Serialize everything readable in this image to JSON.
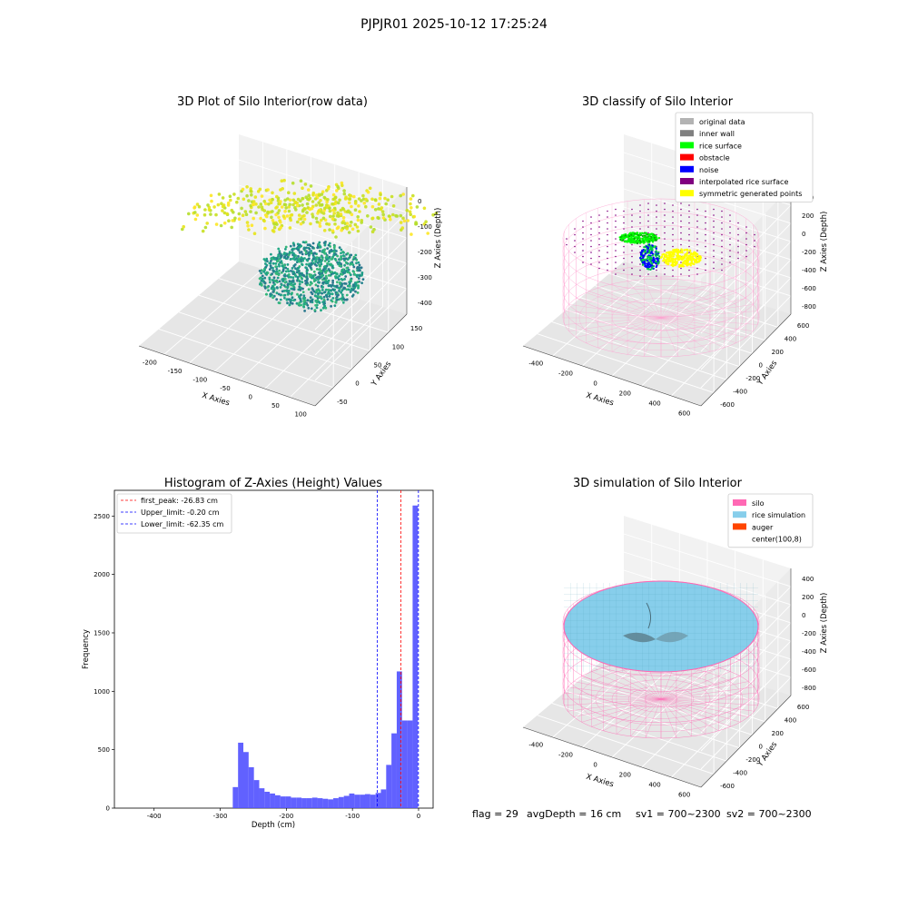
{
  "suptitle": "PJPJR01 2025-10-12 17:25:24",
  "panel1": {
    "title": "3D Plot of Silo Interior(row data)",
    "xlabel": "X Axies",
    "ylabel": "Y Axies",
    "zlabel": "Z Axies (Depth)",
    "xticks": [
      "-200",
      "-150",
      "-100",
      "-50",
      "0",
      "50",
      "100"
    ],
    "yticks": [
      "-50",
      "0",
      "50",
      "100",
      "150"
    ],
    "zticks": [
      "0",
      "-100",
      "-200",
      "-300",
      "-400"
    ]
  },
  "panel2": {
    "title": "3D classify of Silo Interior",
    "xlabel": "X Axies",
    "ylabel": "Y Axies",
    "zlabel": "Z Axies (Depth)",
    "xticks": [
      "-400",
      "-200",
      "0",
      "200",
      "400",
      "600"
    ],
    "yticks": [
      "-600",
      "-400",
      "-200",
      "0",
      "200",
      "400",
      "600"
    ],
    "zticks": [
      "400",
      "200",
      "0",
      "-200",
      "-400",
      "-600",
      "-800"
    ],
    "legend": [
      {
        "label": "original data",
        "color": "#b3b3b3"
      },
      {
        "label": "inner wall",
        "color": "#808080"
      },
      {
        "label": "rice surface",
        "color": "#00ff00"
      },
      {
        "label": "obstacle",
        "color": "#ff0000"
      },
      {
        "label": "noise",
        "color": "#0000ff"
      },
      {
        "label": "interpolated rice surface",
        "color": "#800080"
      },
      {
        "label": "symmetric generated points",
        "color": "#ffff00"
      }
    ]
  },
  "panel3": {
    "title": "Histogram of Z-Axies (Height) Values",
    "xlabel": "Depth (cm)",
    "ylabel": "Frequency",
    "legend": [
      {
        "label": "first_peak: -26.83 cm",
        "color": "#ff0000"
      },
      {
        "label": "Upper_limit: -0.20 cm",
        "color": "#0000ff"
      },
      {
        "label": "Lower_limit: -62.35 cm",
        "color": "#0000ff"
      }
    ]
  },
  "panel4": {
    "title": "3D simulation of Silo Interior",
    "xlabel": "X Axies",
    "ylabel": "Y Axies",
    "zlabel": "Z Axies (Depth)",
    "xticks": [
      "-400",
      "-200",
      "0",
      "200",
      "400",
      "600"
    ],
    "yticks": [
      "-600",
      "-400",
      "-200",
      "0",
      "200",
      "400",
      "600"
    ],
    "zticks": [
      "400",
      "200",
      "0",
      "-200",
      "-400",
      "-600",
      "-800"
    ],
    "legend": [
      {
        "label": "silo",
        "color": "#ff69b4"
      },
      {
        "label": "rice simulation",
        "color": "#87ceeb"
      },
      {
        "label": "auger",
        "color": "#ff4500"
      },
      {
        "label": "center(100,8)",
        "color": ""
      }
    ]
  },
  "footer": {
    "flag": "flag = 29",
    "avg": "avgDepth = 16 cm",
    "sv1": "sv1 = 700~2300",
    "sv2": "sv2 = 700~2300"
  },
  "colors": {
    "hist": "#5050ff",
    "silo": "#ff69b4",
    "rice": "#87ceeb"
  },
  "chart_data": [
    {
      "type": "scatter",
      "title": "3D Plot of Silo Interior(row data)",
      "xlabel": "X Axies",
      "ylabel": "Y Axies",
      "zlabel": "Z Axies (Depth)",
      "xlim": [
        -230,
        110
      ],
      "ylim": [
        -60,
        150
      ],
      "zlim": [
        -460,
        10
      ],
      "grid": true
    },
    {
      "type": "scatter",
      "title": "3D classify of Silo Interior",
      "xlabel": "X Axies",
      "ylabel": "Y Axies",
      "zlabel": "Z Axies (Depth)",
      "xlim": [
        -500,
        700
      ],
      "ylim": [
        -650,
        650
      ],
      "zlim": [
        -900,
        450
      ],
      "series": [
        {
          "name": "original data"
        },
        {
          "name": "inner wall"
        },
        {
          "name": "rice surface"
        },
        {
          "name": "obstacle"
        },
        {
          "name": "noise"
        },
        {
          "name": "interpolated rice surface"
        },
        {
          "name": "symmetric generated points"
        }
      ],
      "legend_position": "top-right",
      "grid": true
    },
    {
      "type": "bar",
      "title": "Histogram of Z-Axies (Height) Values",
      "xlabel": "Depth (cm)",
      "ylabel": "Frequency",
      "xlim": [
        -460,
        22
      ],
      "ylim": [
        0,
        2720
      ],
      "xticks": [
        -400,
        -300,
        -200,
        -100,
        0
      ],
      "yticks": [
        0,
        500,
        1000,
        1500,
        2000,
        2500
      ],
      "bin_width": 8,
      "bins": [
        {
          "x": -277,
          "count": 180
        },
        {
          "x": -269,
          "count": 560
        },
        {
          "x": -261,
          "count": 480
        },
        {
          "x": -253,
          "count": 350
        },
        {
          "x": -245,
          "count": 240
        },
        {
          "x": -237,
          "count": 170
        },
        {
          "x": -229,
          "count": 140
        },
        {
          "x": -221,
          "count": 125
        },
        {
          "x": -213,
          "count": 110
        },
        {
          "x": -205,
          "count": 100
        },
        {
          "x": -197,
          "count": 100
        },
        {
          "x": -189,
          "count": 90
        },
        {
          "x": -181,
          "count": 90
        },
        {
          "x": -173,
          "count": 85
        },
        {
          "x": -165,
          "count": 85
        },
        {
          "x": -157,
          "count": 90
        },
        {
          "x": -149,
          "count": 85
        },
        {
          "x": -141,
          "count": 80
        },
        {
          "x": -133,
          "count": 75
        },
        {
          "x": -125,
          "count": 85
        },
        {
          "x": -117,
          "count": 95
        },
        {
          "x": -109,
          "count": 105
        },
        {
          "x": -101,
          "count": 125
        },
        {
          "x": -93,
          "count": 115
        },
        {
          "x": -85,
          "count": 115
        },
        {
          "x": -77,
          "count": 120
        },
        {
          "x": -69,
          "count": 115
        },
        {
          "x": -61,
          "count": 130
        },
        {
          "x": -53,
          "count": 160
        },
        {
          "x": -45,
          "count": 370
        },
        {
          "x": -37,
          "count": 640
        },
        {
          "x": -29,
          "count": 1170
        },
        {
          "x": -21,
          "count": 750
        },
        {
          "x": -13,
          "count": 750
        },
        {
          "x": -5,
          "count": 2590
        }
      ],
      "vlines": [
        {
          "label": "first_peak: -26.83 cm",
          "x": -26.83,
          "color": "#ff0000"
        },
        {
          "label": "Upper_limit: -0.20 cm",
          "x": -0.2,
          "color": "#0000ff"
        },
        {
          "label": "Lower_limit: -62.35 cm",
          "x": -62.35,
          "color": "#0000ff"
        }
      ],
      "legend_position": "top-left",
      "grid": false
    },
    {
      "type": "surface",
      "title": "3D simulation of Silo Interior",
      "xlabel": "X Axies",
      "ylabel": "Y Axies",
      "zlabel": "Z Axies (Depth)",
      "xlim": [
        -500,
        700
      ],
      "ylim": [
        -650,
        650
      ],
      "zlim": [
        -900,
        450
      ],
      "series": [
        {
          "name": "silo"
        },
        {
          "name": "rice simulation"
        },
        {
          "name": "auger"
        },
        {
          "name": "center(100,8)"
        }
      ],
      "legend_position": "top-right",
      "grid": true
    }
  ]
}
